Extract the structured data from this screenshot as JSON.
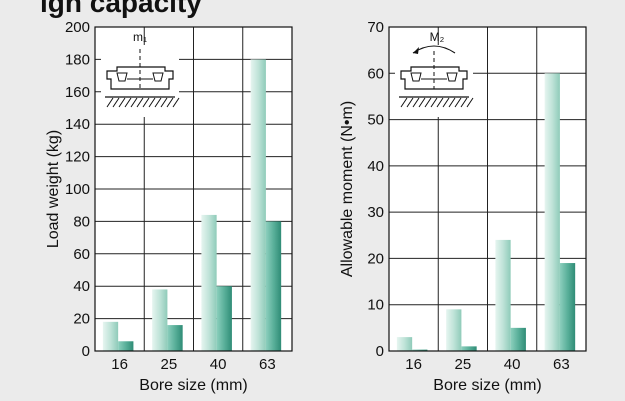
{
  "heading": "igh capacity",
  "chart_data": [
    {
      "type": "bar",
      "categories": [
        "16",
        "25",
        "40",
        "63"
      ],
      "series": [
        {
          "values": [
            18,
            38,
            84,
            180
          ]
        },
        {
          "values": [
            6,
            16,
            40,
            80
          ]
        }
      ],
      "xlabel": "Bore size (mm)",
      "ylabel": "Load weight (kg)",
      "ylim": [
        0,
        200
      ],
      "yticks": [
        0,
        20,
        40,
        60,
        80,
        100,
        120,
        140,
        160,
        180,
        200
      ],
      "grid": true,
      "symbol": "m₁",
      "colors": {
        "light": "#bfe3d8",
        "dark": "#5ab09a"
      }
    },
    {
      "type": "bar",
      "categories": [
        "16",
        "25",
        "40",
        "63"
      ],
      "series": [
        {
          "values": [
            3,
            9,
            24,
            60
          ]
        },
        {
          "values": [
            0.3,
            1,
            5,
            19
          ]
        }
      ],
      "xlabel": "Bore size (mm)",
      "ylabel": "Allowable moment (N•m)",
      "ylim": [
        0,
        70
      ],
      "yticks": [
        0,
        10,
        20,
        30,
        40,
        50,
        60,
        70
      ],
      "grid": true,
      "symbol": "M₂",
      "colors": {
        "light": "#bfe3d8",
        "dark": "#5ab09a"
      }
    }
  ]
}
